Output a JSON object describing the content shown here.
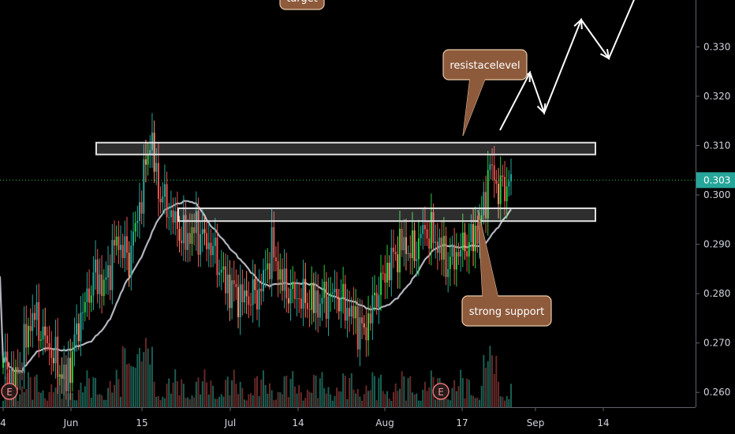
{
  "chart_data": {
    "type": "candlestick",
    "title": "",
    "xlabel": "",
    "ylabel": "",
    "ylim": [
      0.257,
      0.3395
    ],
    "y_ticks": [
      "0.330",
      "0.320",
      "0.310",
      "0.300",
      "0.290",
      "0.280",
      "0.270",
      "0.260"
    ],
    "x_tick_labels": [
      "4",
      "Jun",
      "15",
      "Jul",
      "14",
      "Aug",
      "17",
      "Sep",
      "14"
    ],
    "last_price": 0.303,
    "last_price_label": "0.303",
    "grid": false,
    "colors": {
      "up": "#26a69a",
      "up_bright": "#2ecc40",
      "down": "#ef5350",
      "down_soft": "#ff8a65",
      "ma_line": "#b2b5be",
      "box": "#e0e0e0",
      "callout_fill": "#8d5a3b",
      "callout_stroke": "#e8c9a8",
      "last_price": "#26a69a"
    },
    "moving_average_label": "",
    "resistance_zone": {
      "low": 0.3082,
      "high": 0.3106
    },
    "support_zone": {
      "low": 0.2947,
      "high": 0.2973
    },
    "event_markers": [
      {
        "label": "E"
      },
      {
        "label": "E"
      }
    ],
    "annotations": [
      {
        "text": "resistacelevel"
      },
      {
        "text": "strong support"
      },
      {
        "text": "target"
      }
    ]
  }
}
